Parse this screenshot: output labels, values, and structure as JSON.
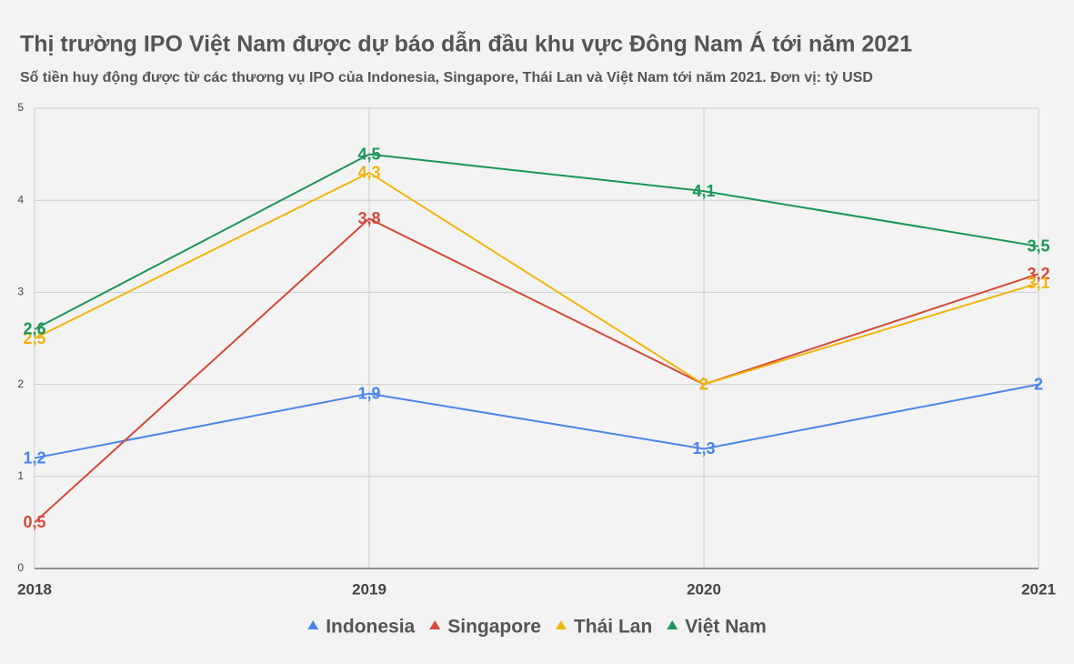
{
  "chart_data": {
    "type": "line",
    "title": "Thị trường IPO Việt Nam được dự báo dẫn đầu khu vực Đông Nam Á tới năm 2021",
    "subtitle": "Số tiền huy động được từ các thương vụ IPO của Indonesia, Singapore, Thái Lan và Việt Nam tới năm 2021. Đơn vị: tỷ USD",
    "categories": [
      "2018",
      "2019",
      "2020",
      "2021"
    ],
    "series": [
      {
        "name": "Indonesia",
        "color": "#4a86e8",
        "values": [
          1.2,
          1.9,
          1.3,
          2
        ],
        "value_labels": [
          "1,2",
          "1,9",
          "1,3",
          "2"
        ]
      },
      {
        "name": "Singapore",
        "color": "#d24b3a",
        "values": [
          0.5,
          3.8,
          2,
          3.2
        ],
        "value_labels": [
          "0,5",
          "3,8",
          "2",
          "3,2"
        ]
      },
      {
        "name": "Thái Lan",
        "color": "#f1b50f",
        "values": [
          2.5,
          4.3,
          2,
          3.1
        ],
        "value_labels": [
          "2,5",
          "4,3",
          "2",
          "3,1"
        ]
      },
      {
        "name": "Việt Nam",
        "color": "#1a9657",
        "values": [
          2.6,
          4.5,
          4.1,
          3.5
        ],
        "value_labels": [
          "2,6",
          "4,5",
          "4,1",
          "3,5"
        ]
      }
    ],
    "ylim": [
      0,
      5
    ],
    "yticks": [
      0,
      1,
      2,
      3,
      4,
      5
    ],
    "grid": true,
    "legend": "bottom"
  }
}
